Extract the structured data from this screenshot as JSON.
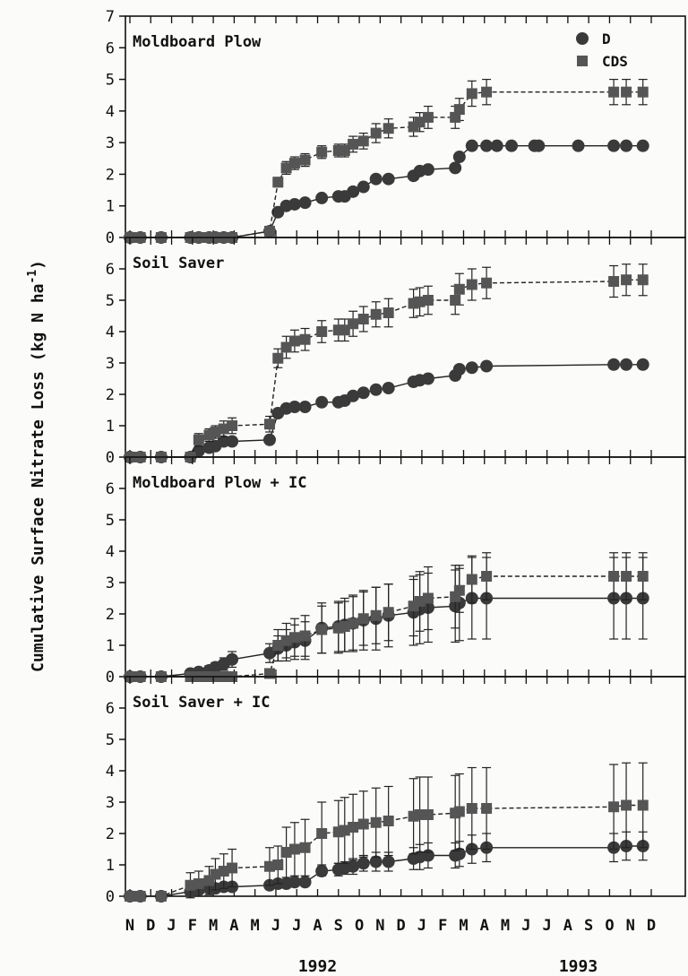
{
  "chart_data": {
    "type": "line",
    "ylabel_main": "Cumulative Surface Nitrate Loss (kg N ha",
    "ylabel_exp": "-1",
    "ylabel_close": ")",
    "legend": [
      {
        "name": "D",
        "marker": "circle"
      },
      {
        "name": "CDS",
        "marker": "square"
      }
    ],
    "month_labels": [
      "N",
      "D",
      "J",
      "F",
      "M",
      "A",
      "M",
      "J",
      "J",
      "A",
      "S",
      "O",
      "N",
      "D",
      "J",
      "F",
      "M",
      "A",
      "M",
      "J",
      "J",
      "A",
      "S",
      "O",
      "N",
      "D"
    ],
    "year_labels": [
      {
        "text": "1992",
        "month_index": 9
      },
      {
        "text": "1993",
        "month_index": 21.5
      }
    ],
    "x_range": [
      0,
      25.6
    ],
    "panels": [
      {
        "title": "Moldboard Plow",
        "ylim": [
          0,
          7
        ],
        "y_ticks": [
          0,
          1,
          2,
          3,
          4,
          5,
          6,
          7
        ],
        "series": [
          {
            "name": "D",
            "x": [
              0,
              0.5,
              1.5,
              2.9,
              3.3,
              3.8,
              4.1,
              4.5,
              4.9,
              6.7,
              7.1,
              7.5,
              7.9,
              8.4,
              9.2,
              10.0,
              10.3,
              10.7,
              11.2,
              11.8,
              12.4,
              13.6,
              13.9,
              14.3,
              15.6,
              15.8,
              16.4,
              17.1,
              17.6,
              18.3,
              19.4,
              19.6,
              21.5,
              23.2,
              23.8,
              24.6
            ],
            "y": [
              0,
              0,
              0,
              0,
              0,
              0,
              0,
              0,
              0,
              0.2,
              0.8,
              1.0,
              1.05,
              1.1,
              1.25,
              1.3,
              1.3,
              1.45,
              1.6,
              1.85,
              1.85,
              1.95,
              2.1,
              2.15,
              2.2,
              2.55,
              2.9,
              2.9,
              2.9,
              2.9,
              2.9,
              2.9,
              2.9,
              2.9,
              2.9,
              2.9
            ],
            "err": [
              0,
              0,
              0,
              0,
              0,
              0,
              0,
              0,
              0,
              0,
              0,
              0,
              0,
              0,
              0,
              0,
              0,
              0,
              0,
              0,
              0,
              0,
              0,
              0,
              0,
              0,
              0,
              0,
              0,
              0,
              0,
              0,
              0,
              0,
              0,
              0
            ]
          },
          {
            "name": "CDS",
            "x": [
              0,
              0.5,
              1.5,
              2.9,
              3.3,
              3.8,
              4.1,
              4.5,
              4.9,
              6.7,
              7.1,
              7.5,
              7.9,
              8.4,
              9.2,
              10.0,
              10.3,
              10.7,
              11.2,
              11.8,
              12.4,
              13.6,
              13.9,
              14.3,
              15.6,
              15.8,
              16.4,
              17.1,
              23.2,
              23.8,
              24.6
            ],
            "y": [
              0,
              0,
              0,
              0,
              0,
              0,
              0,
              0,
              0,
              0.2,
              1.75,
              2.2,
              2.35,
              2.45,
              2.7,
              2.75,
              2.75,
              2.95,
              3.05,
              3.3,
              3.45,
              3.5,
              3.65,
              3.8,
              3.8,
              4.05,
              4.55,
              4.6,
              4.6,
              4.6,
              4.6
            ],
            "err": [
              0,
              0,
              0,
              0,
              0,
              0,
              0,
              0,
              0,
              0,
              0.15,
              0.2,
              0.2,
              0.2,
              0.2,
              0.2,
              0.2,
              0.25,
              0.25,
              0.3,
              0.3,
              0.3,
              0.3,
              0.35,
              0.35,
              0.35,
              0.4,
              0.4,
              0.4,
              0.4,
              0.4
            ]
          }
        ]
      },
      {
        "title": "Soil Saver",
        "ylim": [
          0,
          7
        ],
        "y_ticks": [
          0,
          1,
          2,
          3,
          4,
          5,
          6
        ],
        "series": [
          {
            "name": "D",
            "x": [
              0,
              0.5,
              1.5,
              2.9,
              3.3,
              3.8,
              4.1,
              4.5,
              4.9,
              6.7,
              7.1,
              7.5,
              7.9,
              8.4,
              9.2,
              10.0,
              10.3,
              10.7,
              11.2,
              11.8,
              12.4,
              13.6,
              13.9,
              14.3,
              15.6,
              15.8,
              16.4,
              17.1,
              23.2,
              23.8,
              24.6
            ],
            "y": [
              0,
              0,
              0,
              0,
              0.2,
              0.3,
              0.35,
              0.5,
              0.5,
              0.55,
              1.4,
              1.55,
              1.6,
              1.6,
              1.75,
              1.75,
              1.8,
              1.95,
              2.05,
              2.15,
              2.2,
              2.4,
              2.45,
              2.5,
              2.6,
              2.8,
              2.85,
              2.9,
              2.95,
              2.95,
              2.95
            ],
            "err": [
              0,
              0,
              0,
              0,
              0,
              0,
              0,
              0,
              0,
              0,
              0,
              0,
              0,
              0,
              0,
              0,
              0,
              0,
              0,
              0,
              0,
              0,
              0,
              0,
              0,
              0,
              0,
              0,
              0,
              0,
              0
            ]
          },
          {
            "name": "CDS",
            "x": [
              0,
              0.5,
              1.5,
              2.9,
              3.3,
              3.8,
              4.1,
              4.5,
              4.9,
              6.7,
              7.1,
              7.5,
              7.9,
              8.4,
              9.2,
              10.0,
              10.3,
              10.7,
              11.2,
              11.8,
              12.4,
              13.6,
              13.9,
              14.3,
              15.6,
              15.8,
              16.4,
              17.1,
              23.2,
              23.8,
              24.6
            ],
            "y": [
              0,
              0,
              0,
              0,
              0.55,
              0.7,
              0.8,
              0.9,
              1.0,
              1.05,
              3.15,
              3.5,
              3.7,
              3.75,
              4.0,
              4.05,
              4.05,
              4.25,
              4.4,
              4.55,
              4.6,
              4.9,
              4.95,
              5.0,
              5.0,
              5.35,
              5.5,
              5.55,
              5.6,
              5.65,
              5.65
            ],
            "err": [
              0,
              0,
              0,
              0,
              0.2,
              0.2,
              0.2,
              0.25,
              0.25,
              0.25,
              0.3,
              0.35,
              0.35,
              0.35,
              0.35,
              0.35,
              0.35,
              0.4,
              0.4,
              0.4,
              0.45,
              0.45,
              0.45,
              0.45,
              0.45,
              0.5,
              0.5,
              0.5,
              0.5,
              0.5,
              0.5
            ]
          }
        ]
      },
      {
        "title": "Moldboard Plow + IC",
        "ylim": [
          0,
          7
        ],
        "y_ticks": [
          0,
          1,
          2,
          3,
          4,
          5,
          6
        ],
        "series": [
          {
            "name": "D",
            "x": [
              0,
              0.5,
              1.5,
              2.9,
              3.3,
              3.8,
              4.1,
              4.5,
              4.9,
              6.7,
              7.1,
              7.5,
              7.9,
              8.4,
              9.2,
              10.0,
              10.3,
              10.7,
              11.2,
              11.8,
              12.4,
              13.6,
              13.9,
              14.3,
              15.6,
              15.8,
              16.4,
              17.1,
              23.2,
              23.8,
              24.6
            ],
            "y": [
              0,
              0,
              0,
              0.1,
              0.15,
              0.2,
              0.3,
              0.4,
              0.55,
              0.75,
              0.9,
              1.0,
              1.1,
              1.15,
              1.55,
              1.6,
              1.65,
              1.7,
              1.8,
              1.85,
              1.95,
              2.05,
              2.15,
              2.2,
              2.25,
              2.35,
              2.5,
              2.5,
              2.5,
              2.5,
              2.5
            ],
            "err": [
              0,
              0,
              0,
              0.1,
              0.1,
              0.15,
              0.15,
              0.2,
              0.25,
              0.3,
              0.4,
              0.5,
              0.55,
              0.6,
              0.8,
              0.8,
              0.85,
              0.9,
              0.95,
              1.0,
              1.0,
              1.05,
              1.1,
              1.1,
              1.15,
              1.2,
              1.3,
              1.3,
              1.3,
              1.3,
              1.3
            ]
          },
          {
            "name": "CDS",
            "x": [
              0,
              0.5,
              1.5,
              2.9,
              3.3,
              3.8,
              4.1,
              4.5,
              4.9,
              6.7,
              7.1,
              7.5,
              7.9,
              8.4,
              9.2,
              10.0,
              10.3,
              10.7,
              11.2,
              11.8,
              12.4,
              13.6,
              13.9,
              14.3,
              15.6,
              15.8,
              16.4,
              17.1,
              23.2,
              23.8,
              24.6
            ],
            "y": [
              0,
              0,
              0,
              0,
              0,
              0,
              0,
              0,
              0,
              0.1,
              1.0,
              1.15,
              1.25,
              1.3,
              1.5,
              1.55,
              1.6,
              1.7,
              1.85,
              1.95,
              2.05,
              2.25,
              2.4,
              2.5,
              2.55,
              2.75,
              3.1,
              3.2,
              3.2,
              3.2,
              3.2
            ],
            "err": [
              0,
              0,
              0,
              0,
              0,
              0,
              0,
              0,
              0,
              0,
              0.5,
              0.55,
              0.6,
              0.65,
              0.75,
              0.8,
              0.8,
              0.85,
              0.85,
              0.9,
              0.9,
              0.95,
              0.95,
              1.0,
              1.0,
              0.7,
              0.75,
              0.75,
              0.75,
              0.75,
              0.75
            ]
          }
        ]
      },
      {
        "title": "Soil Saver + IC",
        "ylim": [
          0,
          7
        ],
        "y_ticks": [
          0,
          1,
          2,
          3,
          4,
          5,
          6
        ],
        "series": [
          {
            "name": "D",
            "x": [
              0,
              0.5,
              1.5,
              2.9,
              3.3,
              3.8,
              4.1,
              4.5,
              4.9,
              6.7,
              7.1,
              7.5,
              7.9,
              8.4,
              9.2,
              10.0,
              10.3,
              10.7,
              11.2,
              11.8,
              12.4,
              13.6,
              13.9,
              14.3,
              15.6,
              15.8,
              16.4,
              17.1,
              23.2,
              23.8,
              24.6
            ],
            "y": [
              0,
              0,
              0,
              0.15,
              0.2,
              0.25,
              0.25,
              0.3,
              0.3,
              0.35,
              0.4,
              0.4,
              0.45,
              0.45,
              0.8,
              0.85,
              0.9,
              0.95,
              1.05,
              1.1,
              1.1,
              1.2,
              1.25,
              1.3,
              1.3,
              1.35,
              1.5,
              1.55,
              1.55,
              1.6,
              1.6
            ],
            "err": [
              0,
              0,
              0,
              0.1,
              0.1,
              0.1,
              0.1,
              0.1,
              0.1,
              0.1,
              0.1,
              0.1,
              0.1,
              0.1,
              0.15,
              0.2,
              0.2,
              0.25,
              0.25,
              0.3,
              0.3,
              0.35,
              0.4,
              0.4,
              0.4,
              0.4,
              0.45,
              0.45,
              0.45,
              0.45,
              0.45
            ]
          },
          {
            "name": "CDS",
            "x": [
              0,
              0.5,
              1.5,
              2.9,
              3.3,
              3.8,
              4.1,
              4.5,
              4.9,
              6.7,
              7.1,
              7.5,
              7.9,
              8.4,
              9.2,
              10.0,
              10.3,
              10.7,
              11.2,
              11.8,
              12.4,
              13.6,
              13.9,
              14.3,
              15.6,
              15.8,
              16.4,
              17.1,
              23.2,
              23.8,
              24.6
            ],
            "y": [
              0,
              0,
              0,
              0.35,
              0.4,
              0.5,
              0.7,
              0.8,
              0.9,
              0.95,
              1.0,
              1.4,
              1.5,
              1.55,
              2.0,
              2.05,
              2.1,
              2.2,
              2.3,
              2.35,
              2.4,
              2.55,
              2.6,
              2.6,
              2.65,
              2.7,
              2.8,
              2.8,
              2.85,
              2.9,
              2.9
            ],
            "err": [
              0,
              0,
              0,
              0.4,
              0.4,
              0.45,
              0.5,
              0.55,
              0.6,
              0.6,
              0.6,
              0.8,
              0.85,
              0.9,
              1.0,
              1.0,
              1.05,
              1.05,
              1.05,
              1.1,
              1.1,
              1.2,
              1.2,
              1.2,
              1.2,
              1.2,
              1.3,
              1.3,
              1.35,
              1.35,
              1.35
            ]
          }
        ]
      }
    ]
  }
}
